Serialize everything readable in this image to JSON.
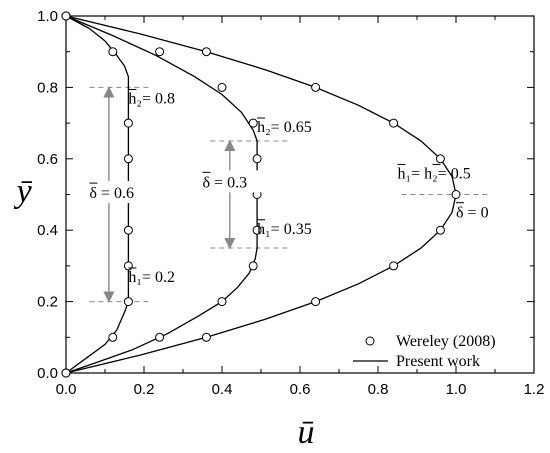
{
  "chart_data": {
    "type": "line",
    "xlabel": "ū",
    "ylabel": "ȳ",
    "xlim": [
      0.0,
      1.2
    ],
    "ylim": [
      0.0,
      1.0
    ],
    "xticks": [
      "0.0",
      "0.2",
      "0.4",
      "0.6",
      "0.8",
      "1.0",
      "1.2"
    ],
    "yticks": [
      "0.0",
      "0.2",
      "0.4",
      "0.6",
      "0.8",
      "1.0"
    ],
    "grid": false,
    "legend_position": "bottom-right",
    "legend": [
      {
        "label": "Wereley (2008)",
        "marker": "open-circle"
      },
      {
        "label": "Present work",
        "marker": "line"
      }
    ],
    "series": [
      {
        "name": "Present work",
        "case": "δ̄ = 0.6",
        "x": [
          0.0,
          0.05,
          0.1,
          0.13,
          0.15,
          0.16,
          0.16,
          0.16,
          0.16,
          0.16,
          0.16,
          0.16,
          0.16,
          0.16,
          0.16,
          0.15,
          0.13,
          0.1,
          0.06,
          0.0
        ],
        "y": [
          0.0,
          0.04,
          0.08,
          0.12,
          0.17,
          0.2,
          0.25,
          0.3,
          0.4,
          0.5,
          0.6,
          0.7,
          0.75,
          0.8,
          0.83,
          0.86,
          0.89,
          0.93,
          0.965,
          1.0
        ]
      },
      {
        "name": "Present work",
        "case": "δ̄ = 0.3",
        "x": [
          0.0,
          0.08,
          0.17,
          0.26,
          0.34,
          0.4,
          0.44,
          0.47,
          0.485,
          0.49,
          0.49,
          0.49,
          0.49,
          0.49,
          0.48,
          0.45,
          0.4,
          0.33,
          0.23,
          0.12,
          0.0
        ],
        "y": [
          0.0,
          0.03,
          0.065,
          0.11,
          0.16,
          0.2,
          0.24,
          0.28,
          0.32,
          0.35,
          0.4,
          0.5,
          0.6,
          0.65,
          0.68,
          0.73,
          0.78,
          0.83,
          0.89,
          0.945,
          1.0
        ]
      },
      {
        "name": "Present work",
        "case": "δ̄ = 0",
        "x": [
          0.0,
          0.19,
          0.36,
          0.51,
          0.64,
          0.75,
          0.84,
          0.91,
          0.96,
          0.99,
          1.0,
          0.99,
          0.96,
          0.91,
          0.84,
          0.75,
          0.64,
          0.51,
          0.36,
          0.19,
          0.0
        ],
        "y": [
          0.0,
          0.05,
          0.1,
          0.15,
          0.2,
          0.25,
          0.3,
          0.35,
          0.4,
          0.45,
          0.5,
          0.55,
          0.6,
          0.65,
          0.7,
          0.75,
          0.8,
          0.85,
          0.9,
          0.95,
          1.0
        ]
      },
      {
        "name": "Wereley (2008)",
        "case": "δ̄ = 0.6",
        "x": [
          0.0,
          0.12,
          0.16,
          0.16,
          0.16,
          0.16,
          0.16,
          0.16,
          0.12,
          0.0
        ],
        "y": [
          0.0,
          0.1,
          0.2,
          0.3,
          0.4,
          0.5,
          0.6,
          0.7,
          0.9,
          1.0
        ]
      },
      {
        "name": "Wereley (2008)",
        "case": "δ̄ = 0.3",
        "x": [
          0.0,
          0.24,
          0.4,
          0.48,
          0.49,
          0.49,
          0.49,
          0.48,
          0.4,
          0.24,
          0.0
        ],
        "y": [
          0.0,
          0.1,
          0.2,
          0.3,
          0.4,
          0.5,
          0.6,
          0.7,
          0.8,
          0.9,
          1.0
        ]
      },
      {
        "name": "Wereley (2008)",
        "case": "δ̄ = 0",
        "x": [
          0.0,
          0.36,
          0.64,
          0.84,
          0.96,
          1.0,
          0.96,
          0.84,
          0.64,
          0.36,
          0.0
        ],
        "y": [
          0.0,
          0.1,
          0.2,
          0.3,
          0.4,
          0.5,
          0.6,
          0.7,
          0.8,
          0.9,
          1.0
        ]
      }
    ],
    "dashed_markers": [
      {
        "x": [
          0.06,
          0.22
        ],
        "y": 0.8
      },
      {
        "x": [
          0.06,
          0.22
        ],
        "y": 0.2
      },
      {
        "x": [
          0.37,
          0.57
        ],
        "y": 0.65
      },
      {
        "x": [
          0.37,
          0.57
        ],
        "y": 0.35
      },
      {
        "x": [
          0.86,
          1.08
        ],
        "y": 0.5
      }
    ],
    "arrows": [
      {
        "x": 0.11,
        "y_from": 0.8,
        "y_to": 0.2
      },
      {
        "x": 0.42,
        "y_from": 0.65,
        "y_to": 0.35
      }
    ],
    "annotations": [
      {
        "id": "h2-08",
        "text": "h₂= 0.8",
        "x": 0.16,
        "y": 0.755
      },
      {
        "id": "delta-06",
        "text": "δ = 0.6",
        "x": 0.06,
        "y": 0.49
      },
      {
        "id": "h1-02",
        "text": "h₁= 0.2",
        "x": 0.16,
        "y": 0.255
      },
      {
        "id": "h2-065",
        "text": "h₂= 0.65",
        "x": 0.49,
        "y": 0.675
      },
      {
        "id": "delta-03",
        "text": "δ = 0.3",
        "x": 0.35,
        "y": 0.52
      },
      {
        "id": "h1-035",
        "text": "h₁= 0.35",
        "x": 0.49,
        "y": 0.39
      },
      {
        "id": "h1h2-05",
        "text": "h₁=  h₂= 0.5",
        "x": 0.85,
        "y": 0.545
      },
      {
        "id": "delta-0",
        "text": "δ = 0",
        "x": 1.0,
        "y": 0.435
      }
    ]
  }
}
